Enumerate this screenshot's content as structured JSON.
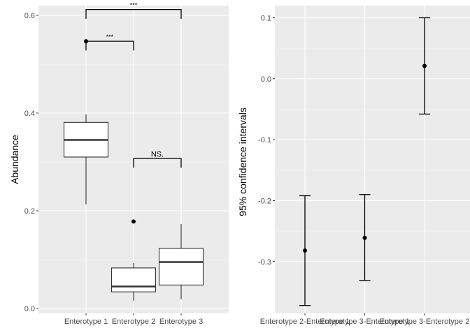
{
  "chart_data": [
    {
      "type": "boxplot",
      "title": "",
      "xlabel": "",
      "ylabel": "Abundance",
      "ylim": [
        -0.01,
        0.62
      ],
      "yticks": [
        0.0,
        0.2,
        0.4,
        0.6
      ],
      "ytick_labels": [
        "0.0",
        "0.2",
        "0.4",
        "0.6"
      ],
      "categories": [
        "Enterotype 1",
        "Enterotype 2",
        "Enterotype 3"
      ],
      "boxes": [
        {
          "category": "Enterotype 1",
          "whisker_low": 0.213,
          "q1": 0.31,
          "median": 0.345,
          "q3": 0.381,
          "whisker_high": 0.397,
          "outliers": [
            0.547
          ]
        },
        {
          "category": "Enterotype 2",
          "whisker_low": 0.016,
          "q1": 0.034,
          "median": 0.045,
          "q3": 0.083,
          "whisker_high": 0.093,
          "outliers": [
            0.178
          ]
        },
        {
          "category": "Enterotype 3",
          "whisker_low": 0.019,
          "q1": 0.048,
          "median": 0.095,
          "q3": 0.123,
          "whisker_high": 0.173,
          "outliers": []
        }
      ],
      "annotations": [
        {
          "from": "Enterotype 1",
          "to": "Enterotype 2",
          "y": 0.547,
          "tick_bottom": 0.528,
          "label": "***"
        },
        {
          "from": "Enterotype 1",
          "to": "Enterotype 3",
          "y": 0.612,
          "tick_bottom": 0.593,
          "label": "***"
        },
        {
          "from": "Enterotype 2",
          "to": "Enterotype 3",
          "y": 0.307,
          "tick_bottom": 0.288,
          "label": "NS."
        }
      ],
      "grid": true
    },
    {
      "type": "errorbar",
      "title": "",
      "xlabel": "",
      "ylabel": "95% confidence intervals",
      "ylim": [
        -0.385,
        0.12
      ],
      "yticks": [
        -0.3,
        -0.2,
        -0.1,
        0.0,
        0.1
      ],
      "ytick_labels": [
        "-0.3",
        "-0.2",
        "-0.1",
        "0.0",
        "0.1"
      ],
      "categories": [
        "Enterotype 2-Enterotype 1",
        "Enterotype 3-Enterotype 1",
        "Enterotype 3-Enterotype 2"
      ],
      "estimates": [
        -0.282,
        -0.261,
        0.021
      ],
      "lower": [
        -0.372,
        -0.331,
        -0.058
      ],
      "upper": [
        -0.192,
        -0.19,
        0.1
      ],
      "grid": true
    }
  ]
}
